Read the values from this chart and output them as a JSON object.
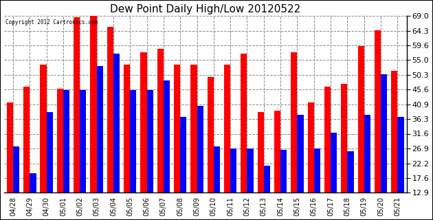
{
  "title": "Dew Point Daily High/Low 20120522",
  "copyright": "Copyright 2012 Cartronics.com",
  "dates": [
    "04/28",
    "04/29",
    "04/30",
    "05/01",
    "05/02",
    "05/03",
    "05/04",
    "05/05",
    "05/06",
    "05/07",
    "05/08",
    "05/09",
    "05/10",
    "05/11",
    "05/12",
    "05/13",
    "05/14",
    "05/15",
    "05/16",
    "05/17",
    "05/18",
    "05/19",
    "05/20",
    "05/21"
  ],
  "highs": [
    41.5,
    46.5,
    53.5,
    46.0,
    68.5,
    69.5,
    65.5,
    53.5,
    57.5,
    58.5,
    53.5,
    53.5,
    49.5,
    53.5,
    57.0,
    38.5,
    39.0,
    57.5,
    41.5,
    46.5,
    47.5,
    59.5,
    64.5,
    51.5
  ],
  "lows": [
    27.5,
    19.0,
    38.5,
    45.5,
    45.5,
    53.0,
    57.0,
    45.5,
    45.5,
    48.5,
    37.0,
    40.5,
    27.5,
    27.0,
    27.0,
    21.5,
    26.5,
    37.5,
    27.0,
    32.0,
    26.0,
    37.5,
    50.5,
    37.0
  ],
  "high_color": "#ff0000",
  "low_color": "#0000ff",
  "bg_color": "#ffffff",
  "plot_bg_color": "#ffffff",
  "grid_color": "#888888",
  "yticks": [
    12.9,
    17.6,
    22.2,
    26.9,
    31.6,
    36.3,
    40.9,
    45.6,
    50.3,
    55.0,
    59.6,
    64.3,
    69.0
  ],
  "ymin": 12.9,
  "ymax": 69.0,
  "bar_width": 0.38
}
